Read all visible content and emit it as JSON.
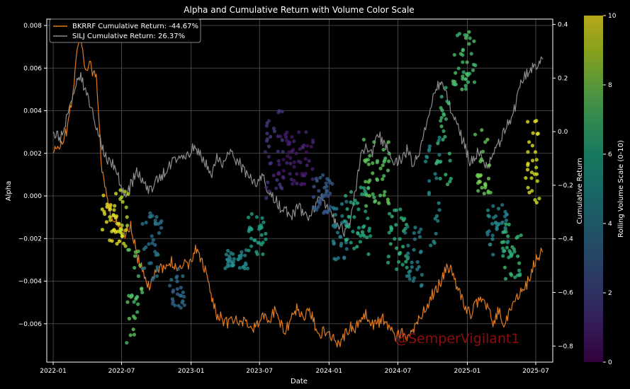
{
  "chart_data": {
    "type": "scatter",
    "title": "Alpha and Cumulative Return with Volume Color Scale",
    "xlabel": "Date",
    "ylabel_left": "Alpha",
    "ylabel_right": "Cumulative Return",
    "colorbar_label": "Rolling Volume Scale (0-10)",
    "watermark": "@SemperVigilant1",
    "x_ticks": [
      "2022-01",
      "2022-07",
      "2023-01",
      "2023-07",
      "2024-01",
      "2024-07",
      "2025-01",
      "2025-07"
    ],
    "y_left_ticks": [
      "0.008",
      "0.006",
      "0.004",
      "0.002",
      "0.000",
      "−0.002",
      "−0.004",
      "−0.006"
    ],
    "y_right_ticks": [
      "0.4",
      "0.2",
      "0.0",
      "−0.2",
      "−0.4",
      "−0.6",
      "−0.8"
    ],
    "colorbar_ticks": [
      "0",
      "2",
      "4",
      "6",
      "8",
      "10"
    ],
    "ylim_left": [
      -0.0078,
      0.0083
    ],
    "ylim_right": [
      -0.86,
      0.42
    ],
    "colorbar_range": [
      0,
      10
    ],
    "legend_position": "top-left",
    "grid": true,
    "series": [
      {
        "name": "BKRRF Cumulative Return: -44.67%",
        "color": "#e07a1f",
        "axis": "right",
        "points": [
          [
            "2022-01-01",
            -0.08
          ],
          [
            "2022-01-20",
            -0.05
          ],
          [
            "2022-02-05",
            0.0
          ],
          [
            "2022-02-20",
            0.12
          ],
          [
            "2022-03-05",
            0.3
          ],
          [
            "2022-03-15",
            0.36
          ],
          [
            "2022-03-25",
            0.25
          ],
          [
            "2022-04-10",
            0.24
          ],
          [
            "2022-04-25",
            0.2
          ],
          [
            "2022-05-10",
            -0.15
          ],
          [
            "2022-05-25",
            -0.27
          ],
          [
            "2022-06-10",
            -0.33
          ],
          [
            "2022-06-25",
            -0.35
          ],
          [
            "2022-07-10",
            -0.38
          ],
          [
            "2022-07-25",
            -0.35
          ],
          [
            "2022-08-10",
            -0.46
          ],
          [
            "2022-08-25",
            -0.52
          ],
          [
            "2022-09-10",
            -0.58
          ],
          [
            "2022-09-25",
            -0.53
          ],
          [
            "2022-10-10",
            -0.5
          ],
          [
            "2022-10-25",
            -0.52
          ],
          [
            "2022-11-10",
            -0.48
          ],
          [
            "2022-11-25",
            -0.52
          ],
          [
            "2022-12-10",
            -0.49
          ],
          [
            "2022-12-25",
            -0.51
          ],
          [
            "2023-01-10",
            -0.44
          ],
          [
            "2023-01-25",
            -0.47
          ],
          [
            "2023-02-10",
            -0.53
          ],
          [
            "2023-02-25",
            -0.62
          ],
          [
            "2023-03-10",
            -0.68
          ],
          [
            "2023-03-25",
            -0.7
          ],
          [
            "2023-04-10",
            -0.72
          ],
          [
            "2023-04-25",
            -0.7
          ],
          [
            "2023-05-10",
            -0.72
          ],
          [
            "2023-05-25",
            -0.7
          ],
          [
            "2023-06-10",
            -0.74
          ],
          [
            "2023-06-25",
            -0.72
          ],
          [
            "2023-07-10",
            -0.69
          ],
          [
            "2023-07-25",
            -0.7
          ],
          [
            "2023-08-10",
            -0.67
          ],
          [
            "2023-08-25",
            -0.72
          ],
          [
            "2023-09-10",
            -0.74
          ],
          [
            "2023-09-25",
            -0.68
          ],
          [
            "2023-10-10",
            -0.66
          ],
          [
            "2023-10-25",
            -0.7
          ],
          [
            "2023-11-10",
            -0.67
          ],
          [
            "2023-11-25",
            -0.72
          ],
          [
            "2023-12-10",
            -0.75
          ],
          [
            "2023-12-25",
            -0.74
          ],
          [
            "2024-01-10",
            -0.77
          ],
          [
            "2024-01-25",
            -0.79
          ],
          [
            "2024-02-10",
            -0.76
          ],
          [
            "2024-02-25",
            -0.73
          ],
          [
            "2024-03-10",
            -0.74
          ],
          [
            "2024-03-25",
            -0.7
          ],
          [
            "2024-04-10",
            -0.68
          ],
          [
            "2024-04-25",
            -0.72
          ],
          [
            "2024-05-10",
            -0.71
          ],
          [
            "2024-05-25",
            -0.7
          ],
          [
            "2024-06-10",
            -0.73
          ],
          [
            "2024-06-25",
            -0.76
          ],
          [
            "2024-07-10",
            -0.75
          ],
          [
            "2024-07-25",
            -0.78
          ],
          [
            "2024-08-10",
            -0.74
          ],
          [
            "2024-08-25",
            -0.7
          ],
          [
            "2024-09-10",
            -0.67
          ],
          [
            "2024-09-25",
            -0.62
          ],
          [
            "2024-10-10",
            -0.59
          ],
          [
            "2024-10-25",
            -0.55
          ],
          [
            "2024-11-10",
            -0.5
          ],
          [
            "2024-11-25",
            -0.54
          ],
          [
            "2024-12-10",
            -0.6
          ],
          [
            "2024-12-25",
            -0.65
          ],
          [
            "2025-01-10",
            -0.68
          ],
          [
            "2025-01-25",
            -0.64
          ],
          [
            "2025-02-10",
            -0.61
          ],
          [
            "2025-02-25",
            -0.67
          ],
          [
            "2025-03-10",
            -0.71
          ],
          [
            "2025-03-25",
            -0.67
          ],
          [
            "2025-04-10",
            -0.72
          ],
          [
            "2025-04-25",
            -0.66
          ],
          [
            "2025-05-10",
            -0.62
          ],
          [
            "2025-05-25",
            -0.6
          ],
          [
            "2025-06-10",
            -0.56
          ],
          [
            "2025-06-25",
            -0.5
          ],
          [
            "2025-07-10",
            -0.46
          ],
          [
            "2025-07-20",
            -0.45
          ]
        ]
      },
      {
        "name": "SILJ Cumulative Return: 26.37%",
        "color": "#8c8c8c",
        "axis": "right",
        "points": [
          [
            "2022-01-01",
            0.0
          ],
          [
            "2022-01-20",
            -0.03
          ],
          [
            "2022-02-05",
            0.05
          ],
          [
            "2022-02-20",
            0.12
          ],
          [
            "2022-03-05",
            0.18
          ],
          [
            "2022-03-15",
            0.2
          ],
          [
            "2022-03-25",
            0.16
          ],
          [
            "2022-04-10",
            0.1
          ],
          [
            "2022-04-25",
            0.02
          ],
          [
            "2022-05-10",
            -0.05
          ],
          [
            "2022-05-25",
            -0.1
          ],
          [
            "2022-06-10",
            -0.12
          ],
          [
            "2022-06-25",
            -0.18
          ],
          [
            "2022-07-10",
            -0.25
          ],
          [
            "2022-07-25",
            -0.2
          ],
          [
            "2022-08-10",
            -0.15
          ],
          [
            "2022-08-25",
            -0.18
          ],
          [
            "2022-09-10",
            -0.22
          ],
          [
            "2022-09-25",
            -0.2
          ],
          [
            "2022-10-10",
            -0.17
          ],
          [
            "2022-10-25",
            -0.15
          ],
          [
            "2022-11-10",
            -0.12
          ],
          [
            "2022-11-25",
            -0.1
          ],
          [
            "2022-12-10",
            -0.08
          ],
          [
            "2022-12-25",
            -0.1
          ],
          [
            "2023-01-10",
            -0.05
          ],
          [
            "2023-01-25",
            -0.08
          ],
          [
            "2023-02-10",
            -0.12
          ],
          [
            "2023-02-25",
            -0.15
          ],
          [
            "2023-03-10",
            -0.1
          ],
          [
            "2023-03-25",
            -0.12
          ],
          [
            "2023-04-10",
            -0.08
          ],
          [
            "2023-04-25",
            -0.1
          ],
          [
            "2023-05-10",
            -0.12
          ],
          [
            "2023-05-25",
            -0.15
          ],
          [
            "2023-06-10",
            -0.18
          ],
          [
            "2023-06-25",
            -0.2
          ],
          [
            "2023-07-10",
            -0.17
          ],
          [
            "2023-07-25",
            -0.22
          ],
          [
            "2023-08-10",
            -0.25
          ],
          [
            "2023-08-25",
            -0.28
          ],
          [
            "2023-09-10",
            -0.3
          ],
          [
            "2023-09-25",
            -0.32
          ],
          [
            "2023-10-10",
            -0.28
          ],
          [
            "2023-10-25",
            -0.3
          ],
          [
            "2023-11-10",
            -0.33
          ],
          [
            "2023-11-25",
            -0.28
          ],
          [
            "2023-12-10",
            -0.25
          ],
          [
            "2023-12-25",
            -0.27
          ],
          [
            "2024-01-10",
            -0.32
          ],
          [
            "2024-01-25",
            -0.35
          ],
          [
            "2024-02-10",
            -0.37
          ],
          [
            "2024-02-25",
            -0.34
          ],
          [
            "2024-03-10",
            -0.22
          ],
          [
            "2024-03-25",
            -0.1
          ],
          [
            "2024-04-10",
            -0.05
          ],
          [
            "2024-04-25",
            -0.08
          ],
          [
            "2024-05-10",
            0.0
          ],
          [
            "2024-05-25",
            -0.05
          ],
          [
            "2024-06-10",
            -0.08
          ],
          [
            "2024-06-25",
            -0.12
          ],
          [
            "2024-07-10",
            -0.1
          ],
          [
            "2024-07-25",
            -0.07
          ],
          [
            "2024-08-10",
            -0.12
          ],
          [
            "2024-08-25",
            -0.08
          ],
          [
            "2024-09-10",
            0.0
          ],
          [
            "2024-09-25",
            0.1
          ],
          [
            "2024-10-10",
            0.15
          ],
          [
            "2024-10-25",
            0.2
          ],
          [
            "2024-11-10",
            0.12
          ],
          [
            "2024-11-25",
            0.05
          ],
          [
            "2024-12-10",
            0.0
          ],
          [
            "2024-12-25",
            -0.05
          ],
          [
            "2025-01-10",
            -0.12
          ],
          [
            "2025-01-25",
            -0.08
          ],
          [
            "2025-02-10",
            -0.1
          ],
          [
            "2025-02-25",
            -0.14
          ],
          [
            "2025-03-10",
            -0.08
          ],
          [
            "2025-03-25",
            -0.05
          ],
          [
            "2025-04-10",
            0.0
          ],
          [
            "2025-04-25",
            0.05
          ],
          [
            "2025-05-10",
            0.1
          ],
          [
            "2025-05-25",
            0.2
          ],
          [
            "2025-06-10",
            0.22
          ],
          [
            "2025-06-25",
            0.24
          ],
          [
            "2025-07-10",
            0.26
          ],
          [
            "2025-07-20",
            0.27
          ]
        ]
      }
    ],
    "scatter_groups": [
      {
        "start": "2022-05-10",
        "end": "2022-07-05",
        "ymin": -0.0023,
        "ymax": 0.0002,
        "c": 9.7
      },
      {
        "start": "2022-06-25",
        "end": "2022-07-20",
        "ymin": -0.0025,
        "ymax": 0.0004,
        "c": 9.0
      },
      {
        "start": "2022-07-10",
        "end": "2022-08-25",
        "ymin": -0.0071,
        "ymax": -0.0025,
        "c": 7.3
      },
      {
        "start": "2022-08-20",
        "end": "2022-10-15",
        "ymin": -0.004,
        "ymax": -0.0008,
        "c": 3.8
      },
      {
        "start": "2022-11-05",
        "end": "2022-12-15",
        "ymin": -0.0054,
        "ymax": -0.0034,
        "c": 3.5
      },
      {
        "start": "2023-04-01",
        "end": "2023-06-01",
        "ymin": -0.0035,
        "ymax": -0.0025,
        "c": 4.7
      },
      {
        "start": "2023-06-01",
        "end": "2023-07-20",
        "ymin": -0.0028,
        "ymax": -0.0008,
        "c": 5.6
      },
      {
        "start": "2023-07-15",
        "end": "2023-09-01",
        "ymin": -0.0002,
        "ymax": 0.004,
        "c": 1.5
      },
      {
        "start": "2023-08-15",
        "end": "2023-11-20",
        "ymin": 0.0005,
        "ymax": 0.003,
        "c": 0.8
      },
      {
        "start": "2023-11-20",
        "end": "2024-01-20",
        "ymin": -0.0008,
        "ymax": 0.001,
        "c": 2.8
      },
      {
        "start": "2024-01-05",
        "end": "2024-02-20",
        "ymin": -0.003,
        "ymax": -0.0002,
        "c": 4.3
      },
      {
        "start": "2024-02-10",
        "end": "2024-04-20",
        "ymin": -0.0028,
        "ymax": 0.0004,
        "c": 6.2
      },
      {
        "start": "2024-04-01",
        "end": "2024-06-10",
        "ymin": -0.0005,
        "ymax": 0.0027,
        "c": 7.5
      },
      {
        "start": "2024-06-05",
        "end": "2024-07-30",
        "ymin": -0.0035,
        "ymax": -0.0005,
        "c": 6.5
      },
      {
        "start": "2024-07-20",
        "end": "2024-09-05",
        "ymin": -0.0043,
        "ymax": -0.0012,
        "c": 4.5
      },
      {
        "start": "2024-09-10",
        "end": "2024-10-20",
        "ymin": -0.0025,
        "ymax": 0.0028,
        "c": 4.8
      },
      {
        "start": "2024-10-10",
        "end": "2024-11-20",
        "ymin": 0.0005,
        "ymax": 0.0055,
        "c": 6.8
      },
      {
        "start": "2024-11-20",
        "end": "2025-01-25",
        "ymin": 0.005,
        "ymax": 0.0077,
        "c": 7.0
      },
      {
        "start": "2025-01-20",
        "end": "2025-03-05",
        "ymin": 0.0001,
        "ymax": 0.0031,
        "c": 7.8
      },
      {
        "start": "2025-02-20",
        "end": "2025-04-20",
        "ymin": -0.0028,
        "ymax": -0.0003,
        "c": 4.5
      },
      {
        "start": "2025-04-01",
        "end": "2025-05-25",
        "ymin": -0.0039,
        "ymax": -0.0013,
        "c": 6.6
      },
      {
        "start": "2025-06-01",
        "end": "2025-07-15",
        "ymin": -0.0005,
        "ymax": 0.0037,
        "c": 9.5
      }
    ]
  }
}
